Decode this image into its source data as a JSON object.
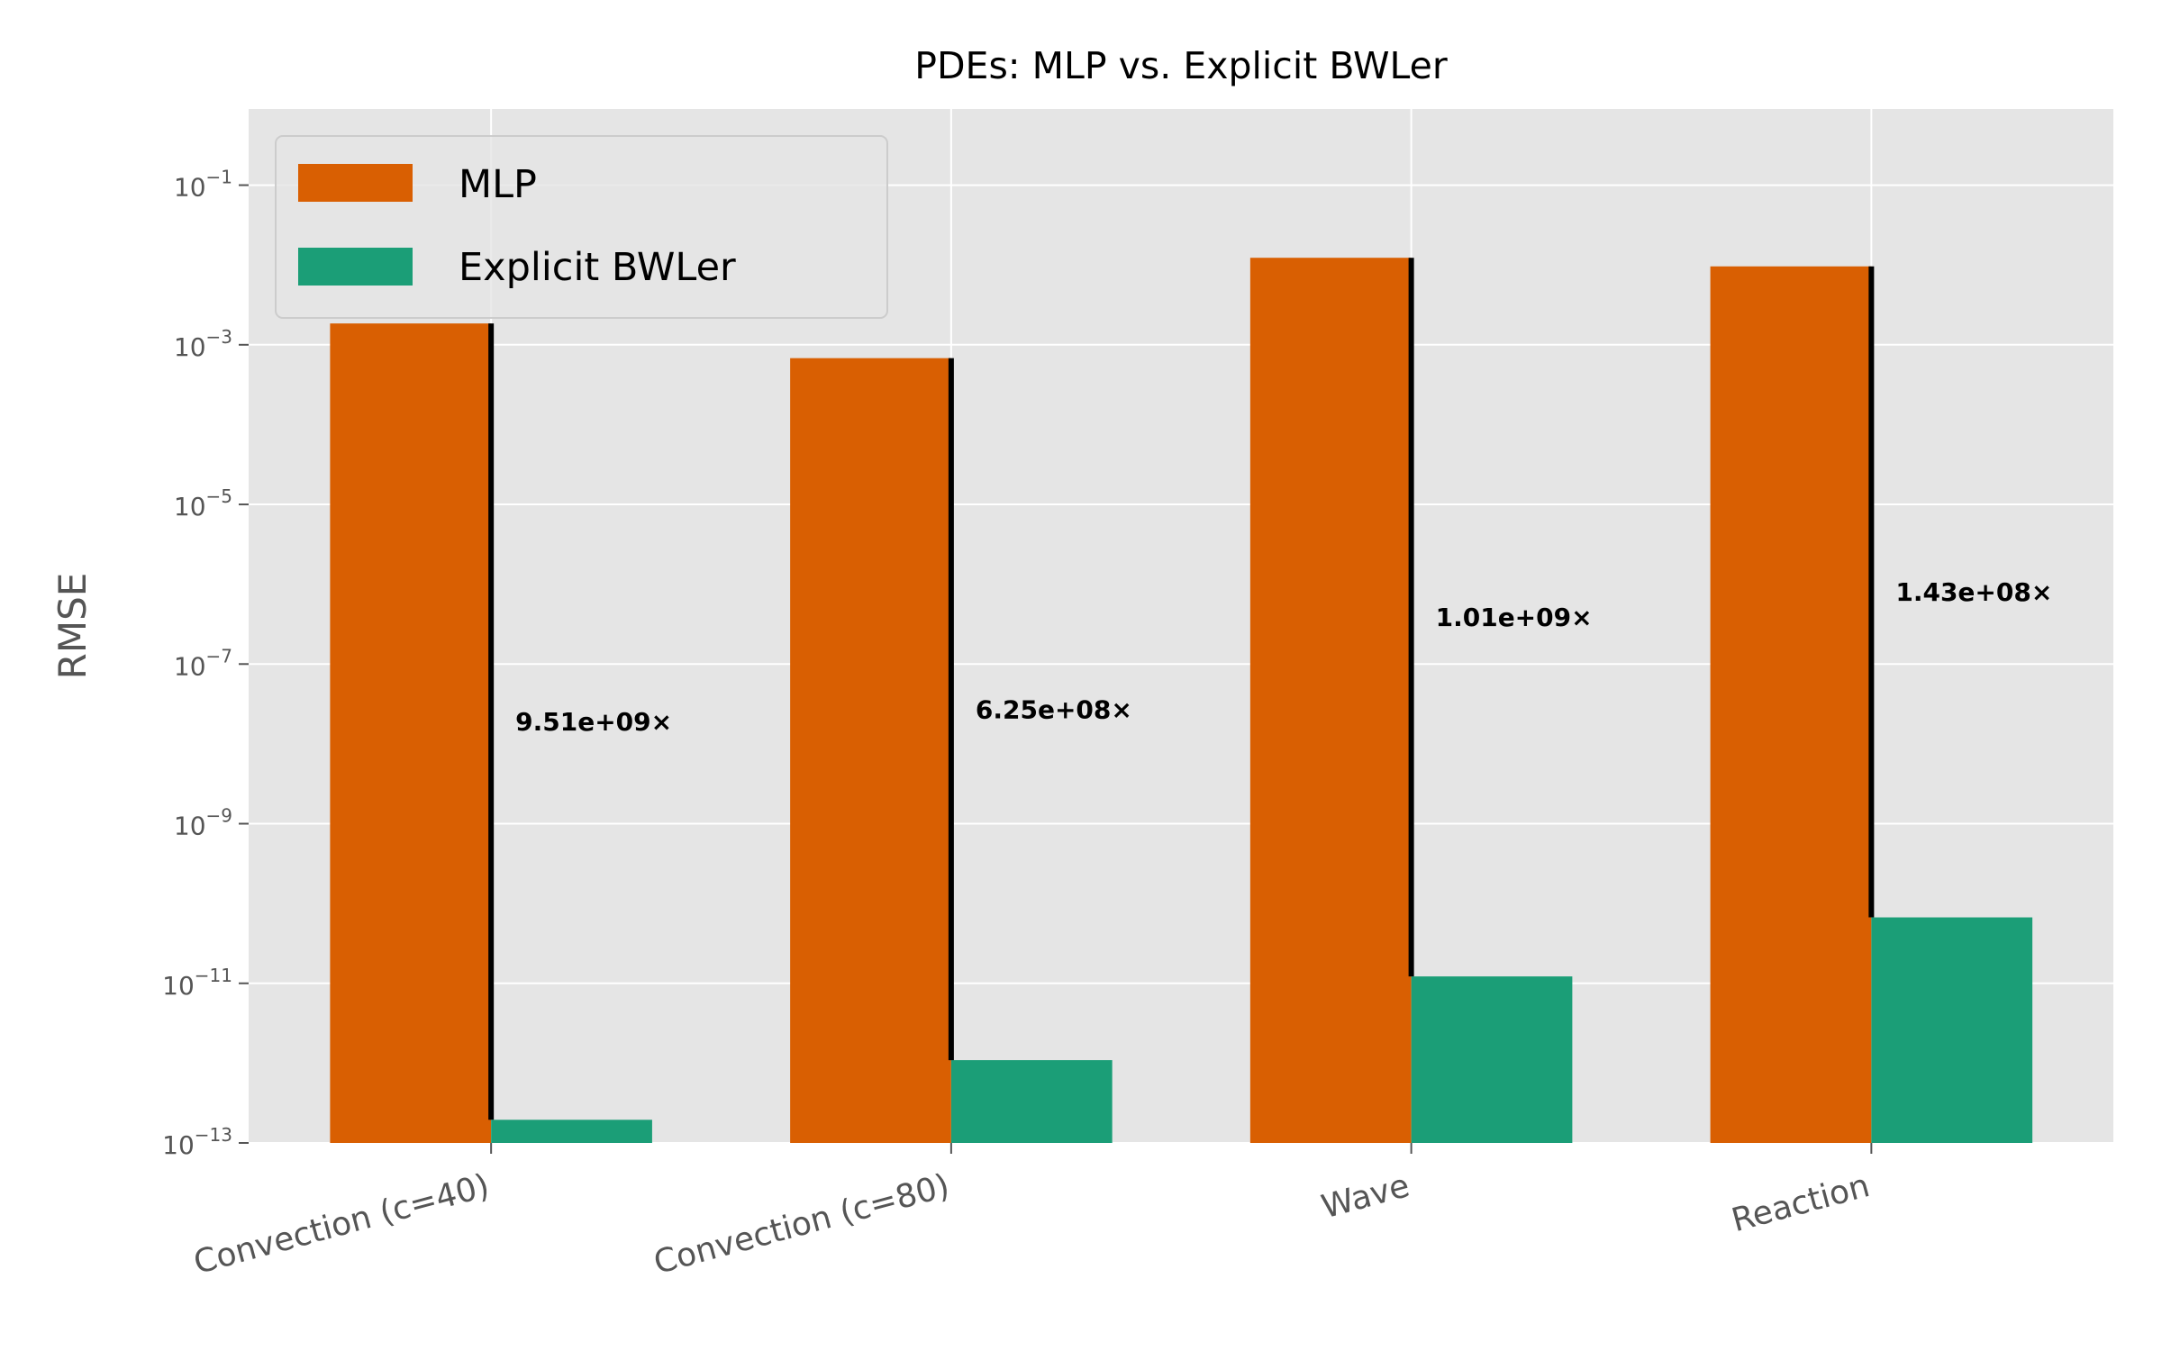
{
  "chart_data": {
    "type": "bar",
    "title": "PDEs: MLP vs. Explicit BWLer",
    "xlabel": "",
    "ylabel": "RMSE",
    "yscale": "log",
    "ylim": [
      1e-13,
      0.9
    ],
    "grid": true,
    "legend_position": "top-left",
    "categories": [
      "Convection (c=40)",
      "Convection (c=80)",
      "Wave",
      "Reaction"
    ],
    "yticks": [
      0.1,
      0.001,
      1e-05,
      1e-07,
      1e-09,
      1e-11,
      1e-13
    ],
    "ytick_labels": [
      {
        "base": "10",
        "exp": "−1"
      },
      {
        "base": "10",
        "exp": "−3"
      },
      {
        "base": "10",
        "exp": "−5"
      },
      {
        "base": "10",
        "exp": "−7"
      },
      {
        "base": "10",
        "exp": "−9"
      },
      {
        "base": "10",
        "exp": "−11"
      },
      {
        "base": "10",
        "exp": "−13"
      }
    ],
    "series": [
      {
        "name": "MLP",
        "color": "#d95f02",
        "values": [
          0.00185,
          0.00068,
          0.0123,
          0.0096
        ]
      },
      {
        "name": "Explicit BWLer",
        "color": "#1b9e77",
        "values": [
          1.95e-13,
          1.09e-12,
          1.22e-11,
          6.7e-11
        ]
      }
    ],
    "annotations": [
      "9.51e+09×",
      "6.25e+08×",
      "1.01e+09×",
      "1.43e+08×"
    ]
  }
}
